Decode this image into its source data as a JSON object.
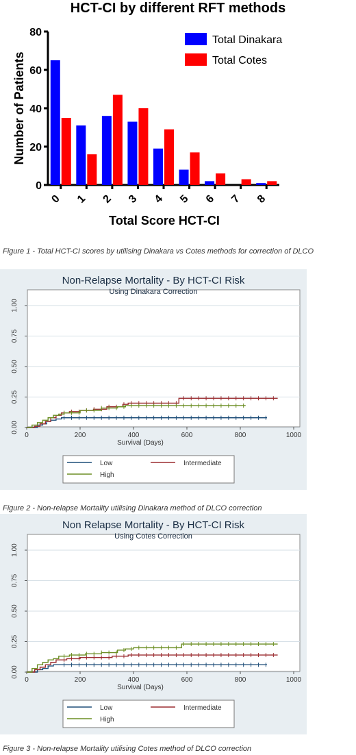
{
  "chart_data": [
    {
      "type": "bar",
      "title": "HCT-CI by different  RFT methods",
      "xlabel": "Total Score  HCT-CI",
      "ylabel": "Number of Patients",
      "categories": [
        "0",
        "1",
        "2",
        "3",
        "4",
        "5",
        "6",
        "7",
        "8"
      ],
      "series": [
        {
          "name": "Total Dinakara",
          "color": "#0000ff",
          "values": [
            65,
            31,
            36,
            33,
            19,
            8,
            2,
            0,
            1
          ]
        },
        {
          "name": "Total Cotes",
          "color": "#ff0000",
          "values": [
            35,
            16,
            47,
            40,
            29,
            17,
            6,
            3,
            2
          ]
        }
      ],
      "ylim": [
        0,
        80
      ],
      "yticks": [
        "0",
        "20",
        "40",
        "60",
        "80"
      ],
      "legend": "top-right",
      "grid": false
    },
    {
      "type": "line",
      "title": "Non-Relapse Mortality - By HCT-CI Risk",
      "subtitle": "Using Dinakara Correction",
      "xlabel": "Survival (Days)",
      "ylabel": "",
      "xlim": [
        0,
        1000
      ],
      "ylim": [
        0,
        1
      ],
      "xticks": [
        "0",
        "200",
        "400",
        "600",
        "800",
        "1000"
      ],
      "yticks": [
        "0.00",
        "0.25",
        "0.50",
        "0.75",
        "1.00"
      ],
      "legend": "bottom",
      "grid": true,
      "series": [
        {
          "name": "Low",
          "color": "#1f4e79",
          "x": [
            0,
            40,
            60,
            75,
            90,
            110,
            130,
            900
          ],
          "y": [
            0,
            0.02,
            0.03,
            0.05,
            0.06,
            0.07,
            0.08,
            0.08
          ]
        },
        {
          "name": "Intermediate",
          "color": "#9b2d30",
          "x": [
            0,
            30,
            50,
            70,
            90,
            110,
            130,
            160,
            200,
            250,
            300,
            360,
            380,
            560,
            570,
            940
          ],
          "y": [
            0,
            0.01,
            0.03,
            0.05,
            0.08,
            0.1,
            0.12,
            0.13,
            0.14,
            0.15,
            0.17,
            0.19,
            0.2,
            0.2,
            0.24,
            0.24
          ]
        },
        {
          "name": "High",
          "color": "#6b8e23",
          "x": [
            0,
            20,
            40,
            60,
            80,
            100,
            120,
            140,
            200,
            280,
            340,
            370,
            460,
            600,
            820
          ],
          "y": [
            0,
            0.02,
            0.04,
            0.06,
            0.08,
            0.1,
            0.11,
            0.12,
            0.14,
            0.16,
            0.17,
            0.18,
            0.18,
            0.18,
            0.18
          ]
        }
      ]
    },
    {
      "type": "line",
      "title": "Non Relapse Mortality - By HCT-CI Risk",
      "subtitle": "Using Cotes Correction",
      "xlabel": "Survival (Days)",
      "ylabel": "",
      "xlim": [
        0,
        1000
      ],
      "ylim": [
        0,
        1
      ],
      "xticks": [
        "0",
        "200",
        "400",
        "600",
        "800",
        "1000"
      ],
      "yticks": [
        "0.00",
        "0.25",
        "0.50",
        "0.75",
        "1.00"
      ],
      "legend": "bottom",
      "grid": true,
      "series": [
        {
          "name": "Low",
          "color": "#1f4e79",
          "x": [
            0,
            40,
            60,
            80,
            100,
            900
          ],
          "y": [
            0,
            0.02,
            0.03,
            0.05,
            0.06,
            0.06
          ]
        },
        {
          "name": "Intermediate",
          "color": "#9b2d30",
          "x": [
            0,
            30,
            50,
            70,
            90,
            110,
            150,
            200,
            260,
            320,
            360,
            380,
            940
          ],
          "y": [
            0,
            0.02,
            0.04,
            0.06,
            0.08,
            0.1,
            0.11,
            0.12,
            0.12,
            0.13,
            0.13,
            0.14,
            0.14
          ]
        },
        {
          "name": "High",
          "color": "#6b8e23",
          "x": [
            0,
            20,
            40,
            60,
            80,
            100,
            120,
            160,
            220,
            280,
            340,
            370,
            400,
            560,
            580,
            940
          ],
          "y": [
            0,
            0.03,
            0.06,
            0.08,
            0.1,
            0.11,
            0.13,
            0.14,
            0.15,
            0.16,
            0.18,
            0.19,
            0.2,
            0.2,
            0.23,
            0.23
          ]
        }
      ]
    }
  ],
  "captions": {
    "fig1": "Figure 1 - Total HCT-CI scores by utilising Dinakara vs Cotes methods for correction of DLCO",
    "fig2": "Figure 2 - Non-relapse Mortality utilising Dinakara method of DLCO correction",
    "fig3": "Figure 3 - Non-relapse Mortality utilising Cotes method of DLCO correction"
  }
}
